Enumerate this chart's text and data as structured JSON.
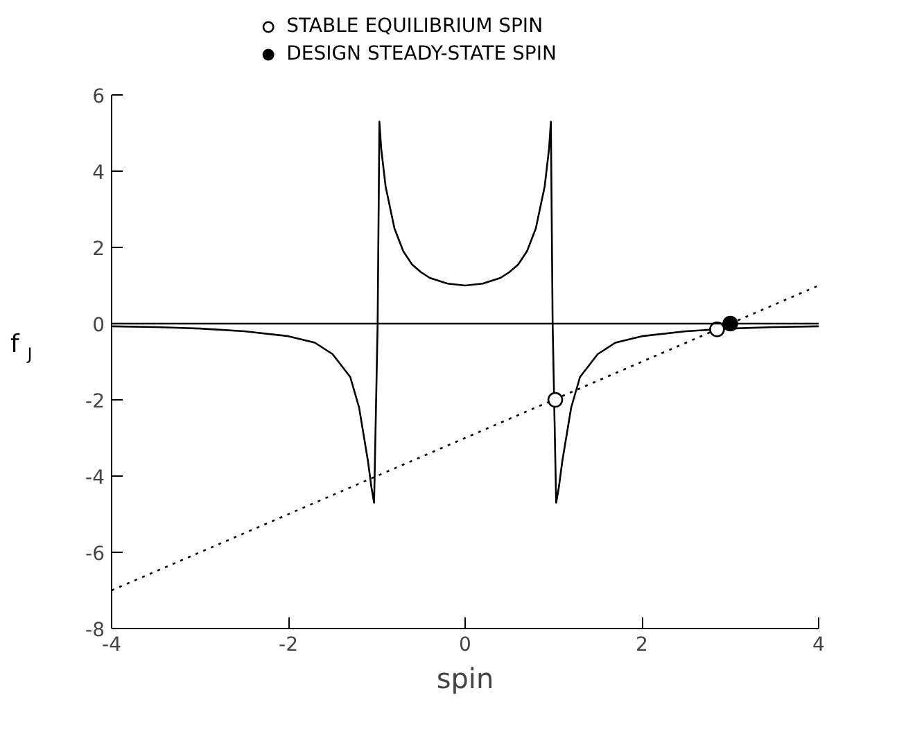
{
  "chart_data": {
    "type": "line",
    "xlabel": "spin",
    "ylabel": "f$_{J}$",
    "xlim": [
      -4,
      4
    ],
    "ylim": [
      -8,
      6
    ],
    "xticks": [
      -4,
      -2,
      0,
      2,
      4
    ],
    "yticks": [
      -8,
      -6,
      -4,
      -2,
      0,
      2,
      4,
      6
    ],
    "grid": false,
    "legend": "top",
    "ref_lines": [
      {
        "axis": "y",
        "value": 0,
        "color": "#000000"
      }
    ],
    "series": [
      {
        "color": "#000000",
        "line_style": "solid",
        "x": [
          -4,
          -3.5,
          -3,
          -2.5,
          -2,
          -1.7,
          -1.5,
          -1.3,
          -1.2,
          -1.1,
          -1.06,
          -1.03,
          -0.99,
          -0.97,
          -0.95,
          -0.9,
          -0.8,
          -0.7,
          -0.6,
          -0.5,
          -0.4,
          -0.2,
          0,
          0.2,
          0.4,
          0.5,
          0.6,
          0.7,
          0.8,
          0.9,
          0.95,
          0.97,
          0.99,
          1.03,
          1.06,
          1.1,
          1.2,
          1.3,
          1.5,
          1.7,
          2,
          2.5,
          3,
          3.5,
          4
        ],
        "values": [
          -0.07,
          -0.09,
          -0.13,
          -0.2,
          -0.33,
          -0.5,
          -0.8,
          -1.4,
          -2.2,
          -3.6,
          -4.3,
          -4.7,
          0,
          5.3,
          4.6,
          3.6,
          2.5,
          1.9,
          1.55,
          1.35,
          1.2,
          1.05,
          1.0,
          1.05,
          1.2,
          1.35,
          1.55,
          1.9,
          2.5,
          3.6,
          4.6,
          5.3,
          0,
          -4.7,
          -4.3,
          -3.6,
          -2.2,
          -1.4,
          -0.8,
          -0.5,
          -0.33,
          -0.2,
          -0.13,
          -0.09,
          -0.07
        ]
      },
      {
        "type": "line",
        "color": "#000000",
        "line_style": "dotted",
        "x": [
          -4,
          4
        ],
        "values": [
          -7,
          1
        ]
      },
      {
        "type": "scatter",
        "name": "STABLE EQUILIBRIUM SPIN",
        "color": "#ffffff",
        "marker": "circle",
        "x": [
          1.02,
          2.85
        ],
        "values": [
          -2,
          -0.15
        ]
      },
      {
        "type": "scatter",
        "name": "DESIGN STEADY-STATE SPIN",
        "color": "#000000",
        "marker": "circle",
        "x": [
          3
        ],
        "values": [
          0
        ]
      }
    ]
  }
}
